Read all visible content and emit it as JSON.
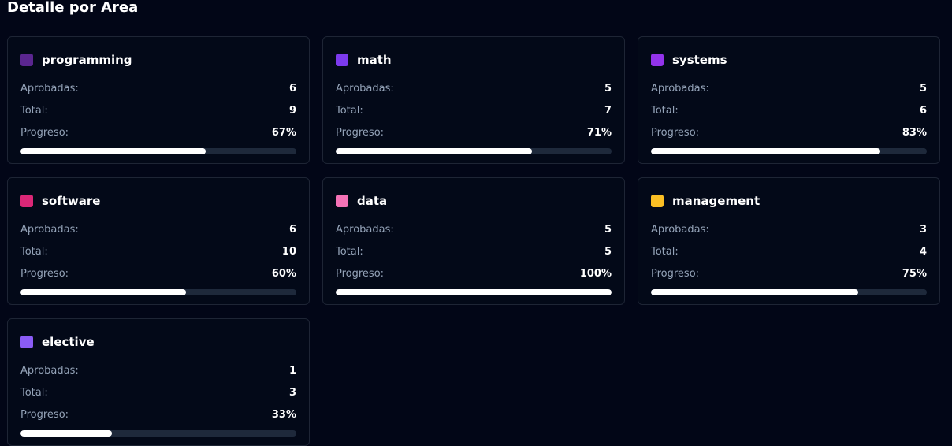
{
  "header": {
    "title": "Detalle por Area"
  },
  "labels": {
    "approved": "Aprobadas:",
    "total": "Total:",
    "progress": "Progreso:"
  },
  "areas": [
    {
      "name": "programming",
      "color": "#5b2690",
      "approved": 6,
      "total": 9,
      "progress": {
        "value": 67,
        "label": "67%"
      }
    },
    {
      "name": "math",
      "color": "#7c3aed",
      "approved": 5,
      "total": 7,
      "progress": {
        "value": 71,
        "label": "71%"
      }
    },
    {
      "name": "systems",
      "color": "#9333ea",
      "approved": 5,
      "total": 6,
      "progress": {
        "value": 83,
        "label": "83%"
      }
    },
    {
      "name": "software",
      "color": "#db2777",
      "approved": 6,
      "total": 10,
      "progress": {
        "value": 60,
        "label": "60%"
      }
    },
    {
      "name": "data",
      "color": "#f472b6",
      "approved": 5,
      "total": 5,
      "progress": {
        "value": 100,
        "label": "100%"
      }
    },
    {
      "name": "management",
      "color": "#fbbf24",
      "approved": 3,
      "total": 4,
      "progress": {
        "value": 75,
        "label": "75%"
      }
    },
    {
      "name": "elective",
      "color": "#8b5cf6",
      "approved": 1,
      "total": 3,
      "progress": {
        "value": 33,
        "label": "33%"
      }
    }
  ]
}
